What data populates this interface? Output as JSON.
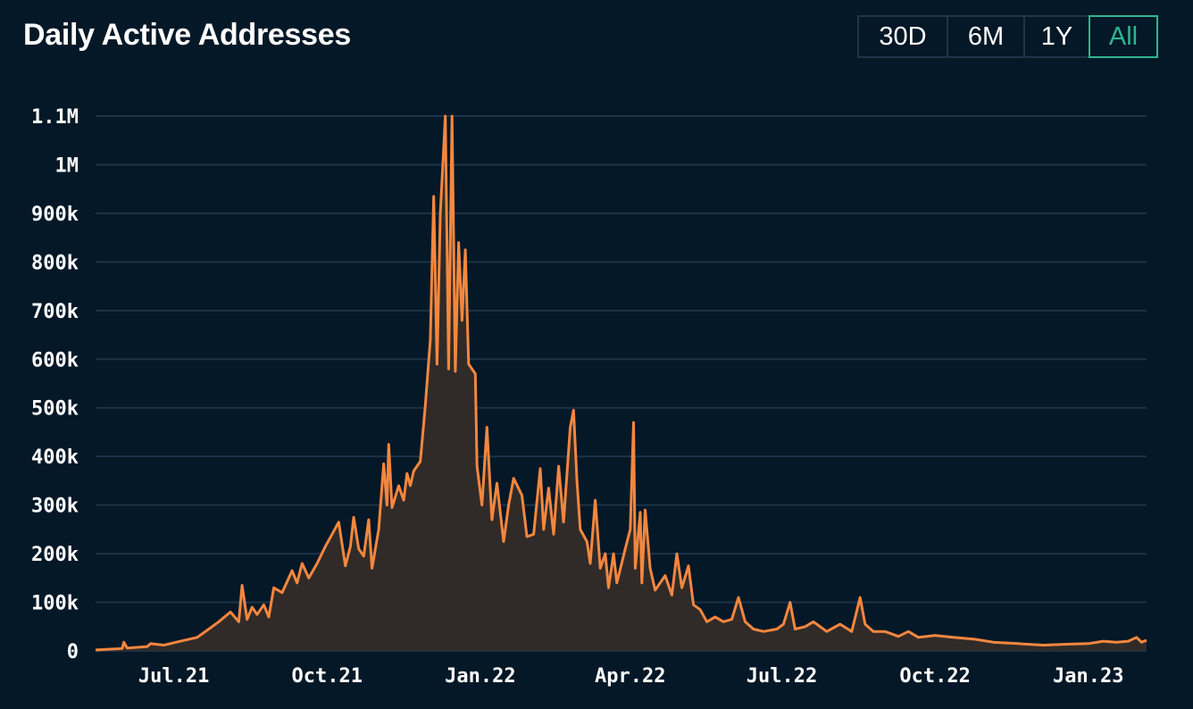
{
  "header": {
    "title": "Daily Active Addresses",
    "ranges": [
      "30D",
      "6M",
      "1Y",
      "All"
    ],
    "active_range": "All"
  },
  "colors": {
    "background": "#041827",
    "line": "#f4873f",
    "area": "#302b28",
    "grid": "#1c3347",
    "active_accent": "#2db58f"
  },
  "chart_data": {
    "type": "area",
    "title": "Daily Active Addresses",
    "xlabel": "",
    "ylabel": "",
    "ylim": [
      0,
      1100000
    ],
    "grid": true,
    "y_ticks": [
      {
        "value": 0,
        "label": "0"
      },
      {
        "value": 100000,
        "label": "100k"
      },
      {
        "value": 200000,
        "label": "200k"
      },
      {
        "value": 300000,
        "label": "300k"
      },
      {
        "value": 400000,
        "label": "400k"
      },
      {
        "value": 500000,
        "label": "500k"
      },
      {
        "value": 600000,
        "label": "600k"
      },
      {
        "value": 700000,
        "label": "700k"
      },
      {
        "value": 800000,
        "label": "800k"
      },
      {
        "value": 900000,
        "label": "900k"
      },
      {
        "value": 1000000,
        "label": "1M"
      },
      {
        "value": 1100000,
        "label": "1.1M"
      }
    ],
    "x_ticks": [
      {
        "value": "2021-07-01",
        "label": "Jul.21"
      },
      {
        "value": "2021-10-01",
        "label": "Oct.21"
      },
      {
        "value": "2022-01-01",
        "label": "Jan.22"
      },
      {
        "value": "2022-04-01",
        "label": "Apr.22"
      },
      {
        "value": "2022-07-01",
        "label": "Jul.22"
      },
      {
        "value": "2022-10-01",
        "label": "Oct.22"
      },
      {
        "value": "2023-01-01",
        "label": "Jan.23"
      }
    ],
    "xlim": [
      "2021-05-15",
      "2023-02-05"
    ],
    "series": [
      {
        "points": [
          [
            "2021-05-15",
            2000
          ],
          [
            "2021-05-31",
            5000
          ],
          [
            "2021-06-01",
            18000
          ],
          [
            "2021-06-03",
            6000
          ],
          [
            "2021-06-15",
            9000
          ],
          [
            "2021-06-17",
            15000
          ],
          [
            "2021-06-25",
            12000
          ],
          [
            "2021-07-05",
            20000
          ],
          [
            "2021-07-15",
            28000
          ],
          [
            "2021-07-22",
            45000
          ],
          [
            "2021-07-28",
            60000
          ],
          [
            "2021-08-04",
            80000
          ],
          [
            "2021-08-09",
            60000
          ],
          [
            "2021-08-11",
            135000
          ],
          [
            "2021-08-14",
            65000
          ],
          [
            "2021-08-17",
            90000
          ],
          [
            "2021-08-20",
            75000
          ],
          [
            "2021-08-24",
            95000
          ],
          [
            "2021-08-27",
            70000
          ],
          [
            "2021-08-30",
            130000
          ],
          [
            "2021-09-04",
            120000
          ],
          [
            "2021-09-10",
            165000
          ],
          [
            "2021-09-13",
            140000
          ],
          [
            "2021-09-16",
            180000
          ],
          [
            "2021-09-20",
            150000
          ],
          [
            "2021-09-25",
            180000
          ],
          [
            "2021-09-30",
            215000
          ],
          [
            "2021-10-04",
            240000
          ],
          [
            "2021-10-08",
            265000
          ],
          [
            "2021-10-12",
            175000
          ],
          [
            "2021-10-15",
            215000
          ],
          [
            "2021-10-17",
            275000
          ],
          [
            "2021-10-20",
            210000
          ],
          [
            "2021-10-23",
            195000
          ],
          [
            "2021-10-26",
            270000
          ],
          [
            "2021-10-28",
            170000
          ],
          [
            "2021-11-01",
            250000
          ],
          [
            "2021-11-04",
            385000
          ],
          [
            "2021-11-06",
            300000
          ],
          [
            "2021-11-07",
            425000
          ],
          [
            "2021-11-09",
            295000
          ],
          [
            "2021-11-13",
            340000
          ],
          [
            "2021-11-16",
            310000
          ],
          [
            "2021-11-18",
            365000
          ],
          [
            "2021-11-20",
            340000
          ],
          [
            "2021-11-22",
            370000
          ],
          [
            "2021-11-26",
            390000
          ],
          [
            "2021-11-29",
            505000
          ],
          [
            "2021-12-02",
            640000
          ],
          [
            "2021-12-04",
            935000
          ],
          [
            "2021-12-06",
            590000
          ],
          [
            "2021-12-08",
            900000
          ],
          [
            "2021-12-11",
            1100000
          ],
          [
            "2021-12-13",
            580000
          ],
          [
            "2021-12-15",
            1100000
          ],
          [
            "2021-12-17",
            575000
          ],
          [
            "2021-12-19",
            840000
          ],
          [
            "2021-12-21",
            680000
          ],
          [
            "2021-12-23",
            825000
          ],
          [
            "2021-12-25",
            590000
          ],
          [
            "2021-12-29",
            570000
          ],
          [
            "2021-12-30",
            380000
          ],
          [
            "2022-01-02",
            300000
          ],
          [
            "2022-01-05",
            460000
          ],
          [
            "2022-01-08",
            270000
          ],
          [
            "2022-01-11",
            345000
          ],
          [
            "2022-01-15",
            225000
          ],
          [
            "2022-01-18",
            300000
          ],
          [
            "2022-01-21",
            355000
          ],
          [
            "2022-01-26",
            320000
          ],
          [
            "2022-01-29",
            235000
          ],
          [
            "2022-02-02",
            240000
          ],
          [
            "2022-02-06",
            375000
          ],
          [
            "2022-02-08",
            250000
          ],
          [
            "2022-02-11",
            335000
          ],
          [
            "2022-02-14",
            240000
          ],
          [
            "2022-02-17",
            380000
          ],
          [
            "2022-02-20",
            265000
          ],
          [
            "2022-02-24",
            460000
          ],
          [
            "2022-02-26",
            495000
          ],
          [
            "2022-02-28",
            350000
          ],
          [
            "2022-03-02",
            250000
          ],
          [
            "2022-03-06",
            225000
          ],
          [
            "2022-03-08",
            180000
          ],
          [
            "2022-03-11",
            310000
          ],
          [
            "2022-03-14",
            170000
          ],
          [
            "2022-03-17",
            200000
          ],
          [
            "2022-03-19",
            130000
          ],
          [
            "2022-03-22",
            200000
          ],
          [
            "2022-03-24",
            140000
          ],
          [
            "2022-03-29",
            210000
          ],
          [
            "2022-04-01",
            250000
          ],
          [
            "2022-04-03",
            470000
          ],
          [
            "2022-04-04",
            170000
          ],
          [
            "2022-04-07",
            285000
          ],
          [
            "2022-04-08",
            140000
          ],
          [
            "2022-04-10",
            290000
          ],
          [
            "2022-04-13",
            170000
          ],
          [
            "2022-04-16",
            125000
          ],
          [
            "2022-04-22",
            155000
          ],
          [
            "2022-04-26",
            115000
          ],
          [
            "2022-04-29",
            200000
          ],
          [
            "2022-05-02",
            130000
          ],
          [
            "2022-05-06",
            175000
          ],
          [
            "2022-05-09",
            95000
          ],
          [
            "2022-05-13",
            85000
          ],
          [
            "2022-05-17",
            60000
          ],
          [
            "2022-05-22",
            70000
          ],
          [
            "2022-05-27",
            60000
          ],
          [
            "2022-06-01",
            65000
          ],
          [
            "2022-06-05",
            110000
          ],
          [
            "2022-06-09",
            60000
          ],
          [
            "2022-06-14",
            45000
          ],
          [
            "2022-06-20",
            40000
          ],
          [
            "2022-06-28",
            45000
          ],
          [
            "2022-07-02",
            55000
          ],
          [
            "2022-07-06",
            100000
          ],
          [
            "2022-07-09",
            45000
          ],
          [
            "2022-07-15",
            50000
          ],
          [
            "2022-07-20",
            60000
          ],
          [
            "2022-07-28",
            40000
          ],
          [
            "2022-08-05",
            55000
          ],
          [
            "2022-08-12",
            40000
          ],
          [
            "2022-08-17",
            110000
          ],
          [
            "2022-08-20",
            55000
          ],
          [
            "2022-08-25",
            40000
          ],
          [
            "2022-09-01",
            40000
          ],
          [
            "2022-09-09",
            30000
          ],
          [
            "2022-09-15",
            40000
          ],
          [
            "2022-09-21",
            28000
          ],
          [
            "2022-10-01",
            32000
          ],
          [
            "2022-10-12",
            28000
          ],
          [
            "2022-10-25",
            24000
          ],
          [
            "2022-11-05",
            18000
          ],
          [
            "2022-11-20",
            15000
          ],
          [
            "2022-12-05",
            12000
          ],
          [
            "2022-12-20",
            14000
          ],
          [
            "2023-01-01",
            15000
          ],
          [
            "2023-01-10",
            20000
          ],
          [
            "2023-01-18",
            18000
          ],
          [
            "2023-01-25",
            20000
          ],
          [
            "2023-01-30",
            28000
          ],
          [
            "2023-02-02",
            18000
          ],
          [
            "2023-02-05",
            22000
          ]
        ]
      }
    ]
  }
}
